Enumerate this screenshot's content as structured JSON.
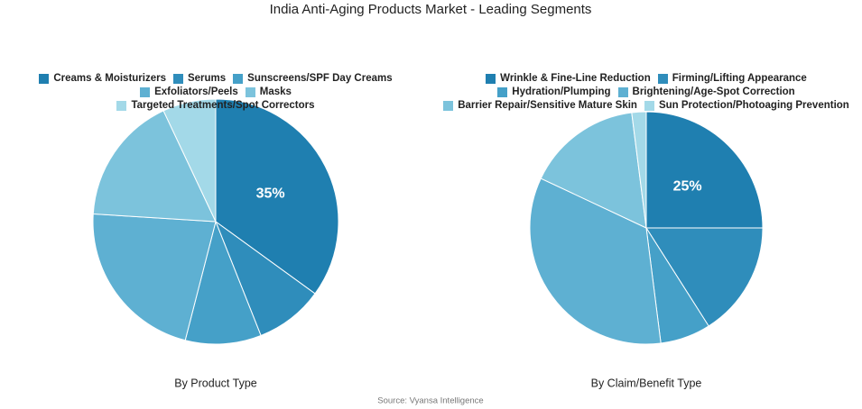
{
  "title": "India Anti-Aging Products Market - Leading Segments",
  "source": "Source: Vyansa Intelligence",
  "chart_data": [
    {
      "type": "pie",
      "title": "By Product Type",
      "categories": [
        "Creams & Moisturizers",
        "Serums",
        "Sunscreens/SPF Day Creams",
        "Exfoliators/Peels",
        "Masks",
        "Targeted Treatments/Spot Correctors"
      ],
      "values": [
        35,
        9,
        10,
        22,
        17,
        7
      ],
      "value_labels": [
        "35%",
        null,
        null,
        null,
        null,
        null
      ],
      "colors": [
        "#1f7fb0",
        "#2f8dbb",
        "#45a0c8",
        "#5eb0d2",
        "#7cc3dc",
        "#a3d9e8"
      ]
    },
    {
      "type": "pie",
      "title": "By Claim/Benefit Type",
      "categories": [
        "Wrinkle & Fine-Line Reduction",
        "Firming/Lifting Appearance",
        "Hydration/Plumping",
        "Brightening/Age-Spot Correction",
        "Barrier Repair/Sensitive Mature Skin",
        "Sun Protection/Photoaging Prevention"
      ],
      "values": [
        25,
        16,
        7,
        34,
        16,
        2
      ],
      "value_labels": [
        "25%",
        null,
        null,
        null,
        null,
        null
      ],
      "colors": [
        "#1f7fb0",
        "#2f8dbb",
        "#45a0c8",
        "#5eb0d2",
        "#7cc3dc",
        "#a3d9e8"
      ]
    }
  ]
}
